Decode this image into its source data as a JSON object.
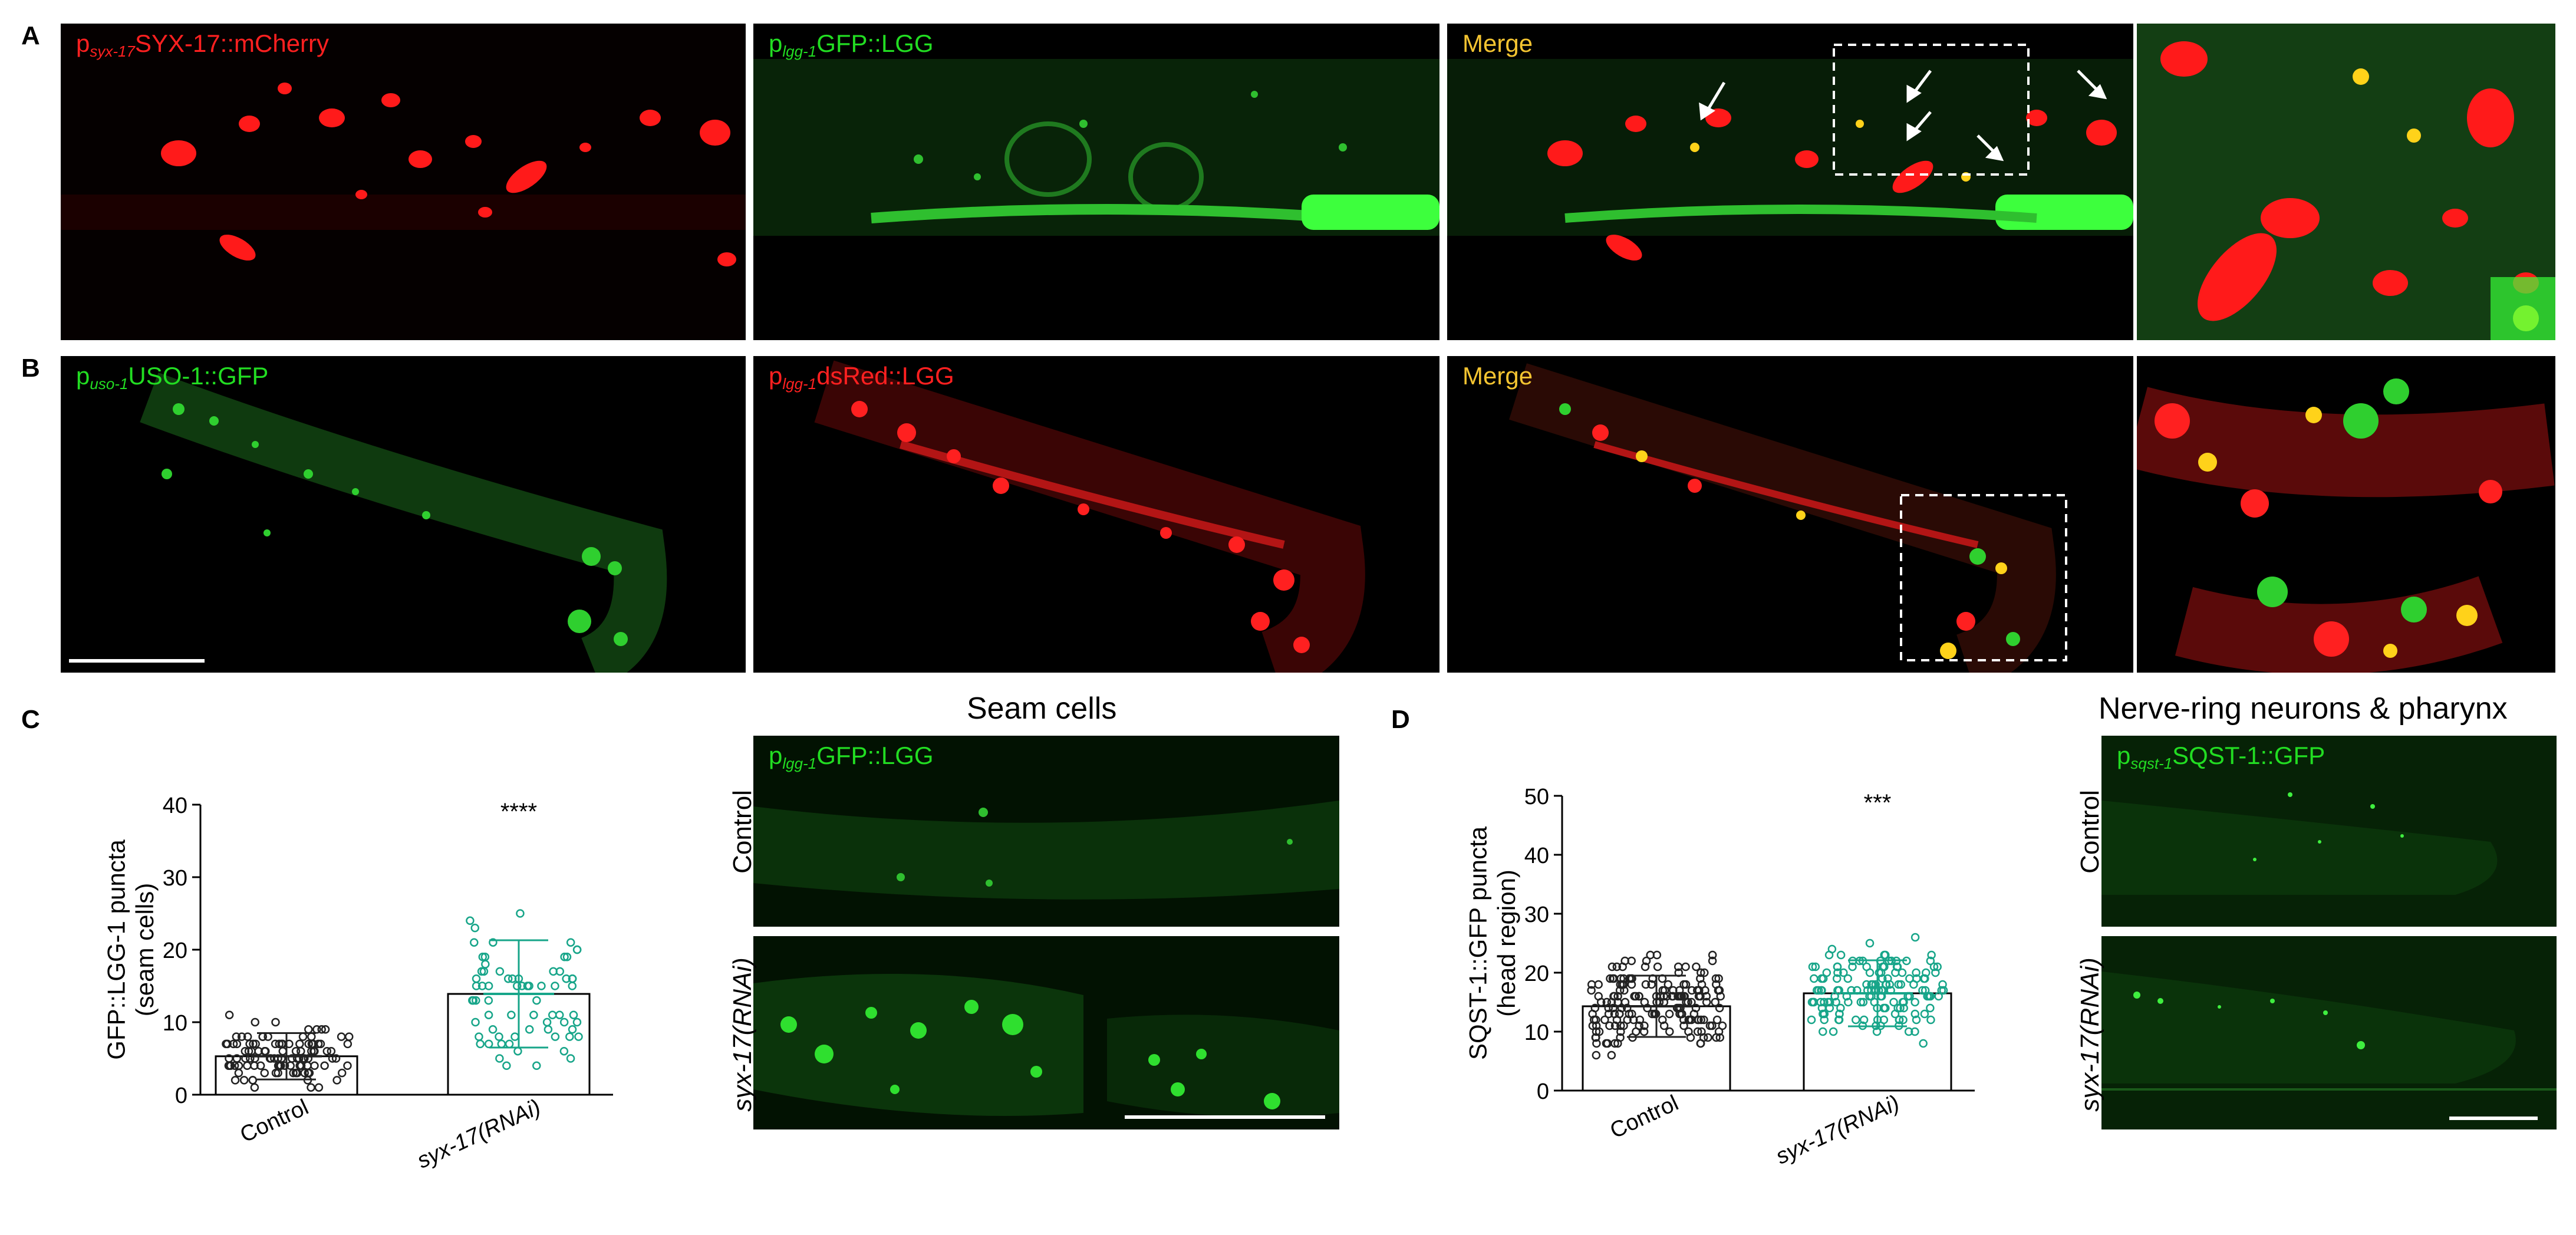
{
  "panels": {
    "A": {
      "letter": "A",
      "images": [
        {
          "label_pre": "p",
          "label_sub": "syx-17",
          "label_post": "SYX-17::mCherry"
        },
        {
          "label_pre": "p",
          "label_sub": "lgg-1",
          "label_post": "GFP::LGG"
        },
        {
          "label_pre": "",
          "label_sub": "",
          "label_post": "Merge"
        },
        {
          "label_pre": "",
          "label_sub": "",
          "label_post": ""
        }
      ]
    },
    "B": {
      "letter": "B",
      "images": [
        {
          "label_pre": "p",
          "label_sub": "uso-1",
          "label_post": "USO-1::GFP"
        },
        {
          "label_pre": "p",
          "label_sub": "lgg-1",
          "label_post": "dsRed::LGG"
        },
        {
          "label_pre": "",
          "label_sub": "",
          "label_post": "Merge"
        },
        {
          "label_pre": "",
          "label_sub": "",
          "label_post": ""
        }
      ]
    },
    "C": {
      "letter": "C",
      "heading": "Seam cells",
      "image_label_pre": "p",
      "image_label_sub": "lgg-1",
      "image_label_post": "GFP::LGG",
      "row_labels": [
        "Control",
        "syx-17(RNAi)"
      ]
    },
    "D": {
      "letter": "D",
      "heading": "Nerve-ring neurons & pharynx",
      "image_label_pre": "p",
      "image_label_sub": "sqst-1",
      "image_label_post": "SQST-1::GFP",
      "row_labels": [
        "Control",
        "syx-17(RNAi)"
      ]
    }
  },
  "chart_data": [
    {
      "type": "bar",
      "panel": "C",
      "ylabel_line1": "GFP::LGG-1 puncta",
      "ylabel_line2": "(seam cells)",
      "categories": [
        "Control",
        "syx-17(RNAi)"
      ],
      "values": [
        5.3,
        13.9
      ],
      "sd": [
        3.2,
        7.4
      ],
      "ylim": [
        0,
        40
      ],
      "yticks": [
        "0",
        "10",
        "20",
        "30",
        "40"
      ],
      "significance": "****",
      "point_colors": [
        "#222222",
        "#17a589"
      ],
      "bar_fill": [
        "#ffffff",
        "#ffffff"
      ]
    },
    {
      "type": "bar",
      "panel": "D",
      "ylabel_line1": "SQST-1::GFP puncta",
      "ylabel_line2": "(head region)",
      "categories": [
        "Control",
        "syx-17(RNAi)"
      ],
      "values": [
        14.3,
        16.5
      ],
      "sd": [
        5.2,
        5.6
      ],
      "ylim": [
        0,
        50
      ],
      "yticks": [
        "0",
        "10",
        "20",
        "30",
        "40",
        "50"
      ],
      "significance": "***",
      "point_colors": [
        "#222222",
        "#17a589"
      ],
      "bar_fill": [
        "#ffffff",
        "#ffffff"
      ]
    }
  ]
}
